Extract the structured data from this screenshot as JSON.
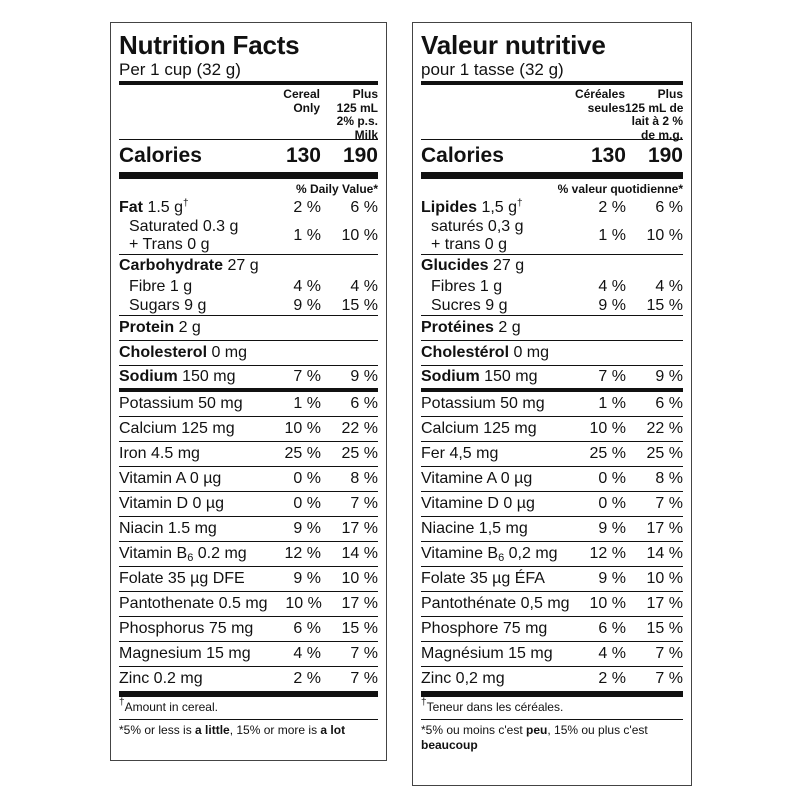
{
  "panels": [
    {
      "id": "p-en",
      "title": "Nutrition Facts",
      "serving": "Per 1 cup (32 g)",
      "col1": [
        "Cereal",
        "Only"
      ],
      "col2": [
        "Plus",
        "125 mL",
        "2% p.s.",
        "Milk"
      ],
      "calories": {
        "label": "Calories",
        "v1": "130",
        "v2": "190"
      },
      "dv_label": "% Daily Value*",
      "rows": [
        {
          "segs": [
            {
              "t": "Fat",
              "s": "b"
            },
            {
              "t": " 1.5 g"
            },
            {
              "t": "†",
              "s": "sup"
            }
          ],
          "v1": "2 %",
          "v2": "6 %",
          "h": "h18"
        },
        {
          "segs": [
            {
              "t": "Saturated 0.3 g"
            }
          ],
          "line2": "+ Trans 0 g",
          "v1": "1 %",
          "v2": "10 %",
          "h": "h36",
          "ind": true,
          "rule": "r1"
        },
        {
          "segs": [
            {
              "t": "Carbohydrate",
              "s": "b"
            },
            {
              "t": " 27 g"
            }
          ],
          "v1": "",
          "v2": "",
          "h": "h23"
        },
        {
          "segs": [
            {
              "t": "Fibre 1 g"
            }
          ],
          "v1": "4 %",
          "v2": "4 %",
          "h": "h18",
          "ind": true
        },
        {
          "segs": [
            {
              "t": "Sugars 9 g"
            }
          ],
          "v1": "9 %",
          "v2": "15 %",
          "h": "h18",
          "ind": true,
          "rule": "r1"
        },
        {
          "segs": [
            {
              "t": "Protein",
              "s": "b"
            },
            {
              "t": " 2 g"
            }
          ],
          "v1": "",
          "v2": "",
          "h": "h24",
          "rule": "r1"
        },
        {
          "segs": [
            {
              "t": "Cholesterol",
              "s": "b"
            },
            {
              "t": " 0 mg"
            }
          ],
          "v1": "",
          "v2": "",
          "h": "h24",
          "rule": "r1"
        },
        {
          "segs": [
            {
              "t": "Sodium",
              "s": "b"
            },
            {
              "t": " 150 mg"
            }
          ],
          "v1": "7 %",
          "v2": "9 %",
          "h": "h23",
          "rule": "r4"
        },
        {
          "segs": [
            {
              "t": "Potassium 50 mg"
            }
          ],
          "v1": "1 %",
          "v2": "6 %",
          "h": "h24",
          "rule": "r1"
        },
        {
          "segs": [
            {
              "t": "Calcium 125 mg"
            }
          ],
          "v1": "10 %",
          "v2": "22 %",
          "h": "h24",
          "rule": "r1"
        },
        {
          "segs": [
            {
              "t": "Iron 4.5 mg"
            }
          ],
          "v1": "25 %",
          "v2": "25 %",
          "h": "h24",
          "rule": "r1"
        },
        {
          "segs": [
            {
              "t": "Vitamin A 0 µg"
            }
          ],
          "v1": "0 %",
          "v2": "8 %",
          "h": "h24",
          "rule": "r1"
        },
        {
          "segs": [
            {
              "t": "Vitamin D 0 µg"
            }
          ],
          "v1": "0 %",
          "v2": "7 %",
          "h": "h24",
          "rule": "r1"
        },
        {
          "segs": [
            {
              "t": "Niacin 1.5 mg"
            }
          ],
          "v1": "9 %",
          "v2": "17 %",
          "h": "h24",
          "rule": "r1"
        },
        {
          "segs": [
            {
              "t": "Vitamin B"
            },
            {
              "t": "6",
              "s": "sub"
            },
            {
              "t": " 0.2 mg"
            }
          ],
          "v1": "12 %",
          "v2": "14 %",
          "h": "h24",
          "rule": "r1"
        },
        {
          "segs": [
            {
              "t": "Folate 35 µg DFE"
            }
          ],
          "v1": "9 %",
          "v2": "10 %",
          "h": "h24",
          "rule": "r1"
        },
        {
          "segs": [
            {
              "t": "Pantothenate 0.5 mg"
            }
          ],
          "v1": "10 %",
          "v2": "17 %",
          "h": "h24",
          "rule": "r1"
        },
        {
          "segs": [
            {
              "t": "Phosphorus 75 mg"
            }
          ],
          "v1": "6 %",
          "v2": "15 %",
          "h": "h24",
          "rule": "r1"
        },
        {
          "segs": [
            {
              "t": "Magnesium 15 mg"
            }
          ],
          "v1": "4 %",
          "v2": "7 %",
          "h": "h24",
          "rule": "r1"
        },
        {
          "segs": [
            {
              "t": "Zinc 0.2 mg"
            }
          ],
          "v1": "2 %",
          "v2": "7 %",
          "h": "h24",
          "rule": "r6"
        }
      ],
      "footnote": [
        {
          "t": "†",
          "s": "sup"
        },
        {
          "t": "Amount in cereal."
        }
      ],
      "footer": [
        {
          "t": "*5% or less is "
        },
        {
          "t": "a little",
          "s": "b"
        },
        {
          "t": ", 15% or more is "
        },
        {
          "t": "a lot",
          "s": "b"
        }
      ]
    },
    {
      "id": "p-fr",
      "title": "Valeur nutritive",
      "serving": "pour 1 tasse (32 g)",
      "col1": [
        "Céréales",
        "seules"
      ],
      "col2": [
        "Plus",
        "125 mL de",
        "lait à 2 %",
        "de m.g."
      ],
      "calories": {
        "label": "Calories",
        "v1": "130",
        "v2": "190"
      },
      "dv_label": "% valeur quotidienne*",
      "rows": [
        {
          "segs": [
            {
              "t": "Lipides",
              "s": "b"
            },
            {
              "t": " 1,5 g"
            },
            {
              "t": "†",
              "s": "sup"
            }
          ],
          "v1": "2 %",
          "v2": "6 %",
          "h": "h18"
        },
        {
          "segs": [
            {
              "t": "saturés 0,3 g"
            }
          ],
          "line2": "+ trans 0 g",
          "v1": "1 %",
          "v2": "10 %",
          "h": "h36",
          "ind": true,
          "rule": "r1"
        },
        {
          "segs": [
            {
              "t": "Glucides",
              "s": "b"
            },
            {
              "t": " 27 g"
            }
          ],
          "v1": "",
          "v2": "",
          "h": "h23"
        },
        {
          "segs": [
            {
              "t": "Fibres 1 g"
            }
          ],
          "v1": "4 %",
          "v2": "4 %",
          "h": "h18",
          "ind": true
        },
        {
          "segs": [
            {
              "t": "Sucres 9 g"
            }
          ],
          "v1": "9 %",
          "v2": "15 %",
          "h": "h18",
          "ind": true,
          "rule": "r1"
        },
        {
          "segs": [
            {
              "t": "Protéines",
              "s": "b"
            },
            {
              "t": " 2 g"
            }
          ],
          "v1": "",
          "v2": "",
          "h": "h24",
          "rule": "r1"
        },
        {
          "segs": [
            {
              "t": "Cholestérol",
              "s": "b"
            },
            {
              "t": " 0 mg"
            }
          ],
          "v1": "",
          "v2": "",
          "h": "h24",
          "rule": "r1"
        },
        {
          "segs": [
            {
              "t": "Sodium",
              "s": "b"
            },
            {
              "t": " 150 mg"
            }
          ],
          "v1": "7 %",
          "v2": "9 %",
          "h": "h23",
          "rule": "r4"
        },
        {
          "segs": [
            {
              "t": "Potassium 50 mg"
            }
          ],
          "v1": "1 %",
          "v2": "6 %",
          "h": "h24",
          "rule": "r1"
        },
        {
          "segs": [
            {
              "t": "Calcium 125 mg"
            }
          ],
          "v1": "10 %",
          "v2": "22 %",
          "h": "h24",
          "rule": "r1"
        },
        {
          "segs": [
            {
              "t": "Fer 4,5 mg"
            }
          ],
          "v1": "25 %",
          "v2": "25 %",
          "h": "h24",
          "rule": "r1"
        },
        {
          "segs": [
            {
              "t": "Vitamine A 0 µg"
            }
          ],
          "v1": "0 %",
          "v2": "8 %",
          "h": "h24",
          "rule": "r1"
        },
        {
          "segs": [
            {
              "t": "Vitamine D 0 µg"
            }
          ],
          "v1": "0 %",
          "v2": "7 %",
          "h": "h24",
          "rule": "r1"
        },
        {
          "segs": [
            {
              "t": "Niacine 1,5 mg"
            }
          ],
          "v1": "9 %",
          "v2": "17 %",
          "h": "h24",
          "rule": "r1"
        },
        {
          "segs": [
            {
              "t": "Vitamine B"
            },
            {
              "t": "6",
              "s": "sub"
            },
            {
              "t": " 0,2 mg"
            }
          ],
          "v1": "12 %",
          "v2": "14 %",
          "h": "h24",
          "rule": "r1"
        },
        {
          "segs": [
            {
              "t": "Folate 35 µg ÉFA"
            }
          ],
          "v1": "9 %",
          "v2": "10 %",
          "h": "h24",
          "rule": "r1"
        },
        {
          "segs": [
            {
              "t": "Pantothénate 0,5 mg"
            }
          ],
          "v1": "10 %",
          "v2": "17 %",
          "h": "h24",
          "rule": "r1"
        },
        {
          "segs": [
            {
              "t": "Phosphore 75 mg"
            }
          ],
          "v1": "6 %",
          "v2": "15 %",
          "h": "h24",
          "rule": "r1"
        },
        {
          "segs": [
            {
              "t": "Magnésium 15 mg"
            }
          ],
          "v1": "4 %",
          "v2": "7 %",
          "h": "h24",
          "rule": "r1"
        },
        {
          "segs": [
            {
              "t": "Zinc 0,2 mg"
            }
          ],
          "v1": "2 %",
          "v2": "7 %",
          "h": "h24",
          "rule": "r6"
        }
      ],
      "footnote": [
        {
          "t": "†",
          "s": "sup"
        },
        {
          "t": "Teneur dans les céréales."
        }
      ],
      "footer": [
        {
          "t": "*5% ou moins c'est "
        },
        {
          "t": "peu",
          "s": "b"
        },
        {
          "t": ", 15% ou plus c'est "
        },
        {
          "t": "beaucoup",
          "s": "b"
        }
      ]
    }
  ]
}
